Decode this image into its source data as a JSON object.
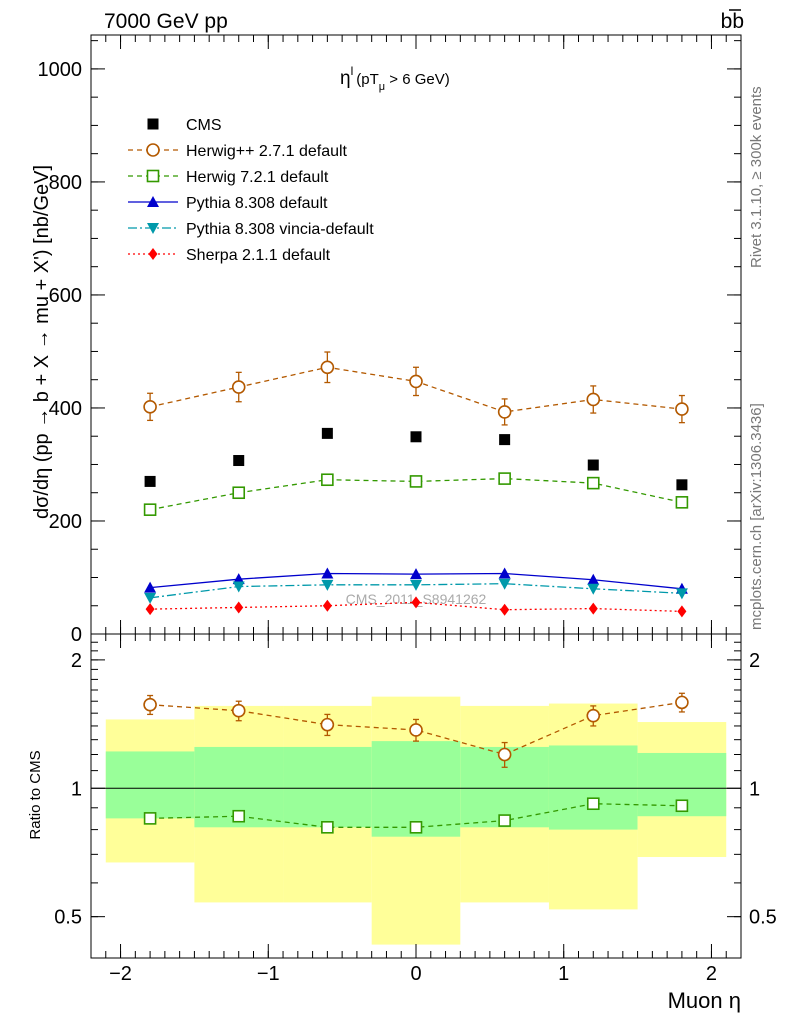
{
  "header": {
    "left": "7000 GeV pp",
    "right": "b",
    "right_bar": "b"
  },
  "side_labels": {
    "rivet": "Rivet 3.1.10, ≥ 300k events",
    "mcplots": "mcplots.cern.ch [arXiv:1306.3436]"
  },
  "chart_data": {
    "type": "scatter",
    "title": "η",
    "title_sup": "l",
    "title_cut": "(pT",
    "title_cut_sub": "μ",
    "title_cut_rest": " >  6 GeV)",
    "xlabel": "Muon η",
    "ylabel": "dσ/dη (pp → b + X → mu + X') [nb/GeV]",
    "ratio_ylabel": "Ratio to CMS",
    "watermark": "CMS_2011_S8941262",
    "xlim": [
      -2.2,
      2.2
    ],
    "ylim": [
      0,
      1060
    ],
    "ratio_ylim": [
      0.4,
      2.3
    ],
    "legend_position": "top-left",
    "x": [
      -1.8,
      -1.2,
      -0.6,
      0.0,
      0.6,
      1.2,
      1.8
    ],
    "x_ticks": [
      {
        "value": -2,
        "label": "−2"
      },
      {
        "value": -1,
        "label": "−1"
      },
      {
        "value": 0,
        "label": "0"
      },
      {
        "value": 1,
        "label": "1"
      },
      {
        "value": 2,
        "label": "2"
      }
    ],
    "y_ticks": [
      {
        "value": 0,
        "label": "0"
      },
      {
        "value": 200,
        "label": "200"
      },
      {
        "value": 400,
        "label": "400"
      },
      {
        "value": 600,
        "label": "600"
      },
      {
        "value": 800,
        "label": "800"
      },
      {
        "value": 1000,
        "label": "1000"
      }
    ],
    "ratio_ticks": [
      {
        "value": 0.5,
        "label": "0.5"
      },
      {
        "value": 1,
        "label": "1"
      },
      {
        "value": 2,
        "label": "2"
      }
    ],
    "bands": {
      "edges": [
        -2.1,
        -1.5,
        -0.9,
        -0.3,
        0.3,
        0.9,
        1.5,
        2.1
      ],
      "inner": [
        [
          0.85,
          1.22
        ],
        [
          0.81,
          1.25
        ],
        [
          0.81,
          1.25
        ],
        [
          0.77,
          1.29
        ],
        [
          0.81,
          1.25
        ],
        [
          0.8,
          1.26
        ],
        [
          0.86,
          1.21
        ]
      ],
      "outer": [
        [
          0.67,
          1.45
        ],
        [
          0.54,
          1.56
        ],
        [
          0.54,
          1.56
        ],
        [
          0.43,
          1.64
        ],
        [
          0.54,
          1.56
        ],
        [
          0.52,
          1.58
        ],
        [
          0.69,
          1.43
        ]
      ],
      "inner_color": "#99ff99",
      "outer_color": "#ffff99"
    },
    "series": [
      {
        "name": "CMS",
        "marker": "square-filled",
        "color": "#000000",
        "dash": "",
        "line": false,
        "values": [
          270,
          307,
          355,
          349,
          344,
          299,
          264
        ]
      },
      {
        "name": "Herwig++ 2.7.1 default",
        "marker": "circle-open",
        "color": "#b35900",
        "dash": "5,4",
        "line": true,
        "values": [
          402,
          437,
          472,
          447,
          393,
          415,
          398
        ],
        "errors": [
          24,
          26,
          27,
          25,
          23,
          24,
          24
        ],
        "ratio": [
          1.57,
          1.52,
          1.41,
          1.37,
          1.2,
          1.48,
          1.59
        ],
        "ratio_errors": [
          0.08,
          0.08,
          0.08,
          0.08,
          0.08,
          0.08,
          0.08
        ]
      },
      {
        "name": "Herwig 7.2.1 default",
        "marker": "square-open",
        "color": "#339900",
        "dash": "5,4",
        "line": true,
        "values": [
          220,
          250,
          273,
          270,
          275,
          267,
          233
        ],
        "ratio": [
          0.85,
          0.86,
          0.81,
          0.81,
          0.84,
          0.92,
          0.91
        ]
      },
      {
        "name": "Pythia 8.308 default",
        "marker": "triangle-up",
        "color": "#0000cc",
        "dash": "",
        "line": true,
        "values": [
          82,
          97,
          107,
          106,
          107,
          96,
          80
        ]
      },
      {
        "name": "Pythia 8.308 vincia-default",
        "marker": "triangle-down",
        "color": "#0099aa",
        "dash": "9,3,2,3",
        "line": true,
        "values": [
          64,
          84,
          87,
          87,
          89,
          80,
          72
        ]
      },
      {
        "name": "Sherpa 2.1.1 default",
        "marker": "diamond",
        "color": "#ff0000",
        "dash": "2,3",
        "line": true,
        "values": [
          44,
          47,
          50,
          56,
          43,
          45,
          40
        ]
      }
    ]
  }
}
